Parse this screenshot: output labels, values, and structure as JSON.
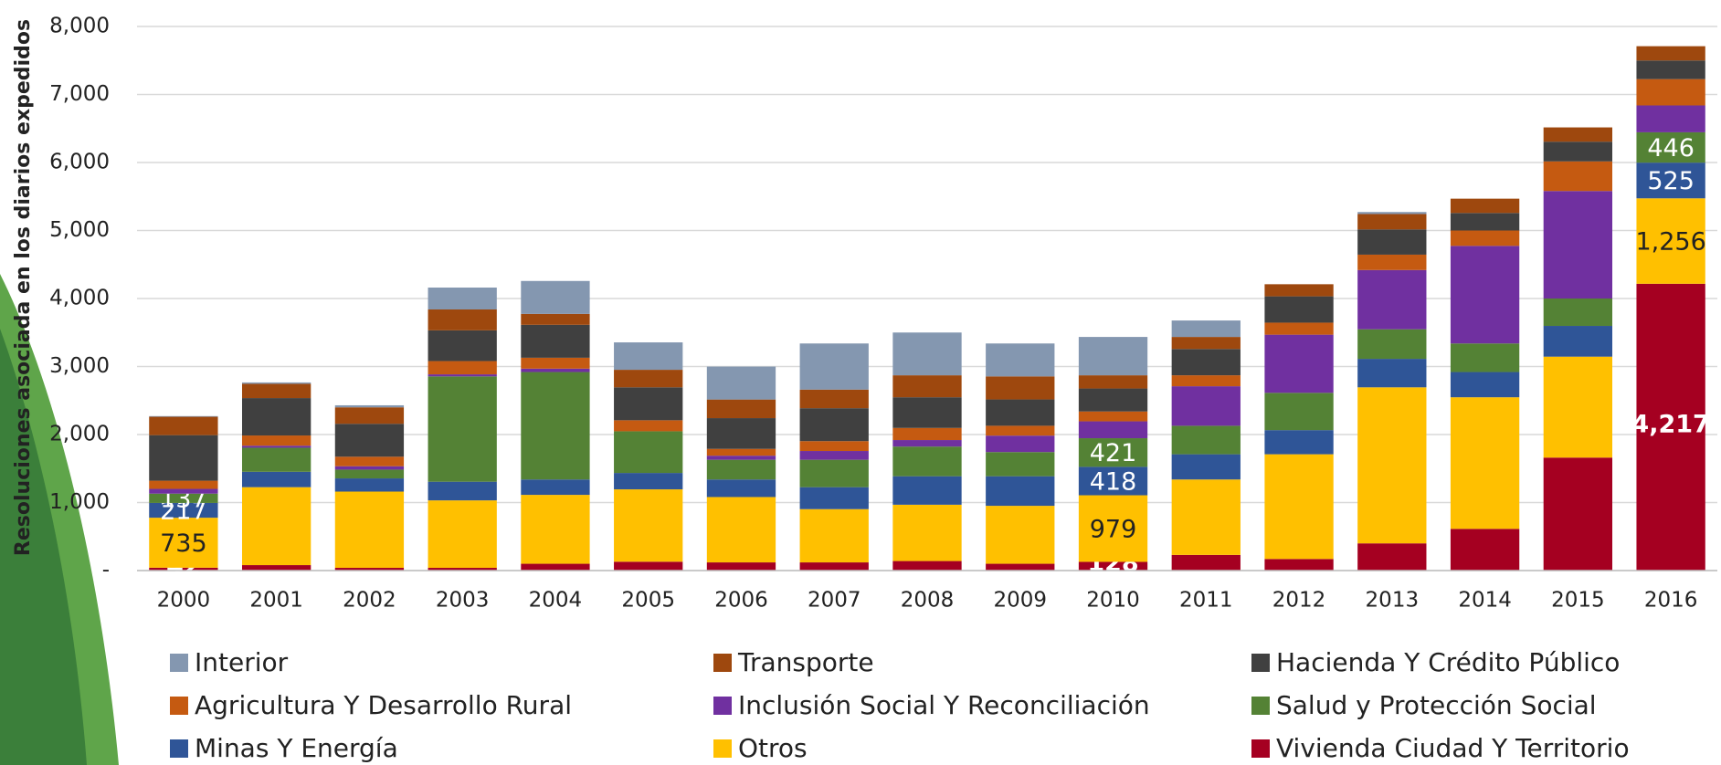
{
  "chart_data": {
    "type": "stacked_bar",
    "y_label": "Resoluciones asociada en los diarios expedidos",
    "categories": [
      "2000",
      "2001",
      "2002",
      "2003",
      "2004",
      "2005",
      "2006",
      "2007",
      "2008",
      "2009",
      "2010",
      "2011",
      "2012",
      "2013",
      "2014",
      "2015",
      "2016"
    ],
    "ylim": [
      0,
      8000
    ],
    "yticks": [
      {
        "value": 0,
        "label": "-"
      },
      {
        "value": 1000,
        "label": "1,000"
      },
      {
        "value": 2000,
        "label": "2,000"
      },
      {
        "value": 3000,
        "label": "3,000"
      },
      {
        "value": 4000,
        "label": "4,000"
      },
      {
        "value": 5000,
        "label": "5,000"
      },
      {
        "value": 6000,
        "label": "6,000"
      },
      {
        "value": 7000,
        "label": "7,000"
      },
      {
        "value": 8000,
        "label": "8,000"
      }
    ],
    "grid": true,
    "legend": "bottom",
    "series": [
      {
        "name": "Interior",
        "color": "#8497b0",
        "values": [
          10,
          20,
          30,
          322,
          484,
          403,
          484,
          678,
          629,
          484,
          564,
          242,
          0,
          30,
          0,
          0,
          0
        ]
      },
      {
        "name": "Transporte",
        "color": "#9e480e",
        "values": [
          270,
          210,
          242,
          307,
          161,
          258,
          274,
          274,
          323,
          339,
          194,
          177,
          178,
          226,
          210,
          210,
          210
        ]
      },
      {
        "name": "Hacienda Y Crédito Público",
        "color": "#404040",
        "values": [
          670,
          550,
          484,
          452,
          484,
          484,
          452,
          484,
          451,
          387,
          338,
          387,
          387,
          371,
          258,
          290,
          274
        ]
      },
      {
        "name": "Agricultura Y Desarrollo Rural",
        "color": "#c55a11",
        "values": [
          120,
          150,
          140,
          195,
          160,
          162,
          100,
          145,
          178,
          145,
          145,
          161,
          177,
          226,
          226,
          435,
          387
        ]
      },
      {
        "name": "Inclusión Social Y Reconciliación",
        "color": "#7030a0",
        "values": [
          70,
          30,
          50,
          30,
          50,
          0,
          60,
          129,
          96,
          242,
          248,
          581,
          855,
          871,
          1435,
          1581,
          395
        ]
      },
      {
        "name": "Salud y Protección Social",
        "color": "#548235",
        "values": [
          137,
          354,
          129,
          1549,
          1580,
          613,
          290,
          403,
          436,
          355,
          421,
          419,
          548,
          435,
          420,
          403,
          446
        ],
        "value_labels": [
          "137",
          null,
          null,
          null,
          null,
          null,
          null,
          null,
          null,
          null,
          "421",
          null,
          null,
          null,
          null,
          null,
          "446"
        ]
      },
      {
        "name": "Minas Y Energía",
        "color": "#2f5597",
        "values": [
          217,
          226,
          194,
          274,
          226,
          241,
          258,
          323,
          419,
          435,
          418,
          371,
          355,
          419,
          371,
          452,
          525
        ],
        "value_labels": [
          "217",
          null,
          null,
          null,
          null,
          null,
          null,
          null,
          null,
          null,
          "418",
          null,
          null,
          null,
          null,
          null,
          "525"
        ]
      },
      {
        "name": "Otros",
        "color": "#ffc000",
        "values": [
          735,
          1146,
          1121,
          992,
          1013,
          1064,
          961,
          783,
          828,
          852,
          979,
          1109,
          1540,
          2294,
          1935,
          1484,
          1256
        ],
        "value_labels": [
          "735",
          null,
          null,
          null,
          null,
          null,
          null,
          null,
          null,
          null,
          "979",
          null,
          null,
          null,
          null,
          null,
          "1,256"
        ]
      },
      {
        "name": "Vivienda Ciudad Y Territorio",
        "color": "#a50021",
        "values": [
          42,
          80,
          40,
          40,
          100,
          130,
          120,
          120,
          140,
          100,
          128,
          230,
          170,
          400,
          613,
          1661,
          4217
        ],
        "value_labels": [
          "42",
          null,
          null,
          null,
          null,
          null,
          null,
          null,
          null,
          null,
          "128",
          null,
          null,
          null,
          null,
          null,
          "4,217"
        ]
      }
    ]
  }
}
